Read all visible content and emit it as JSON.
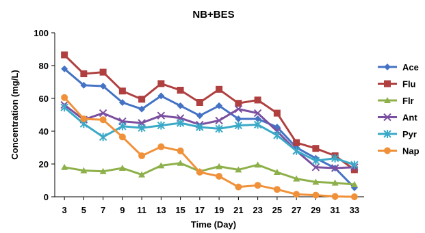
{
  "chart_data": {
    "type": "line",
    "title": "NB+BES",
    "xlabel": "Time (Day)",
    "ylabel": "Concentration (mg/L)",
    "x": [
      3,
      5,
      7,
      9,
      11,
      13,
      15,
      17,
      19,
      21,
      23,
      25,
      27,
      29,
      31,
      33
    ],
    "ylim": [
      0,
      100
    ],
    "yticks": [
      0,
      20,
      40,
      60,
      80,
      100
    ],
    "grid": false,
    "legend": "right",
    "series": [
      {
        "name": "Ace",
        "color": "#4472C4",
        "marker": "diamond",
        "values": [
          78,
          68,
          67.5,
          57.5,
          53.5,
          61.5,
          55.5,
          49.5,
          55.5,
          47.5,
          47.5,
          42.5,
          30,
          23.5,
          17.5,
          5.5
        ]
      },
      {
        "name": "Flu",
        "color": "#B04040",
        "marker": "square",
        "values": [
          86.5,
          75,
          76,
          64.5,
          59.5,
          69,
          65,
          57.5,
          65.5,
          57,
          59,
          51,
          33,
          29.5,
          25,
          16.5
        ]
      },
      {
        "name": "Flr",
        "color": "#8DB04A",
        "marker": "triangle",
        "values": [
          18,
          16,
          15.5,
          17.5,
          13.5,
          19,
          20.5,
          15.5,
          18.5,
          16.5,
          19.5,
          15,
          11,
          9,
          8.5,
          7.5
        ]
      },
      {
        "name": "Ant",
        "color": "#7B4FA0",
        "marker": "x",
        "values": [
          56,
          47,
          51,
          46,
          45,
          49.5,
          48,
          44,
          46.5,
          53.5,
          51,
          40,
          28,
          18,
          17.5,
          18
        ]
      },
      {
        "name": "Pyr",
        "color": "#3AA9C8",
        "marker": "star",
        "values": [
          54.5,
          44.5,
          36.5,
          43,
          42,
          43.5,
          45,
          42.5,
          41.5,
          43.5,
          44,
          37.5,
          28,
          22,
          23.5,
          19.5
        ]
      },
      {
        "name": "Nap",
        "color": "#F0913A",
        "marker": "circle",
        "values": [
          60.5,
          47.5,
          47,
          36.5,
          25,
          30.5,
          28,
          15,
          12.5,
          6,
          7,
          4.5,
          1.5,
          1,
          0.2,
          0
        ]
      }
    ]
  }
}
